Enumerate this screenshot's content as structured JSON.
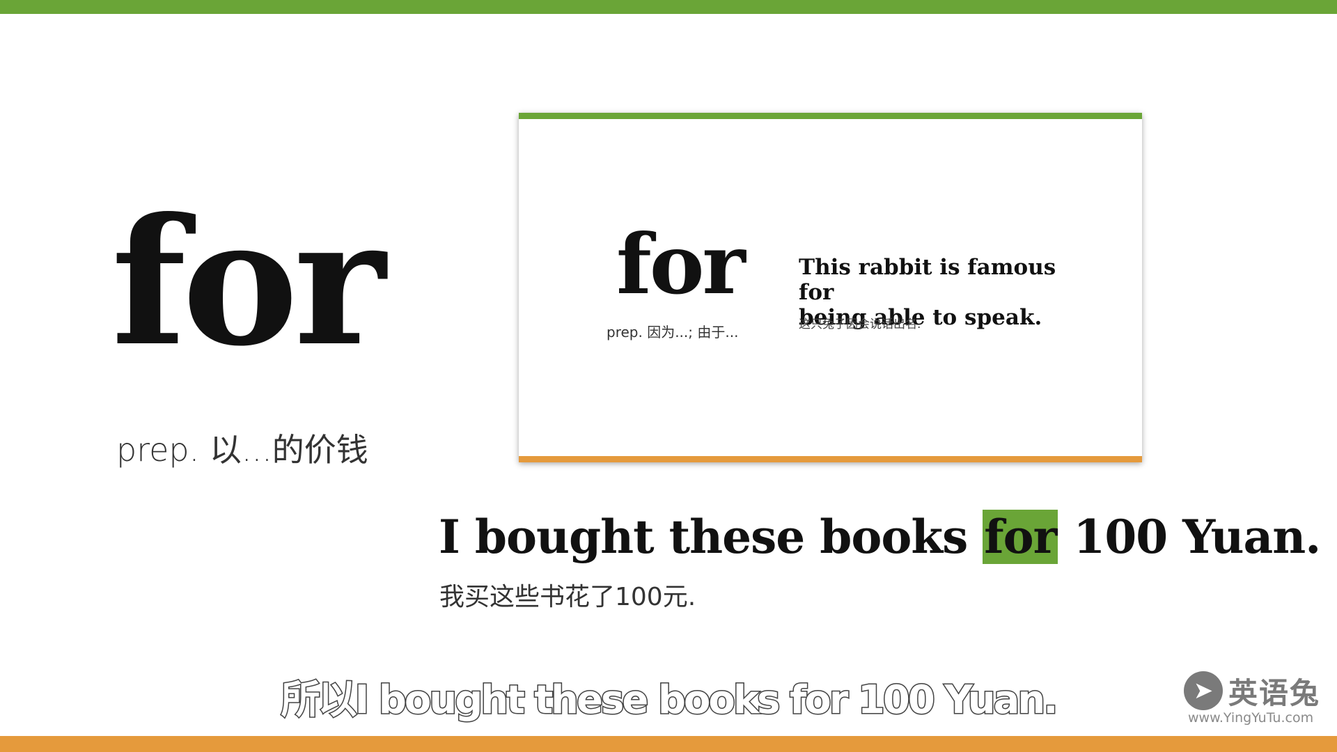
{
  "colors": {
    "accent_green": "#6aa537",
    "accent_orange": "#e59a3c",
    "text_dark": "#111111"
  },
  "main": {
    "word": "for",
    "part_of_speech": "prep. 以...的价钱"
  },
  "card": {
    "word": "for",
    "part_of_speech": "prep. 因为...; 由于...",
    "example_en_line1": "This rabbit is famous for",
    "example_en_line2": "being able to speak.",
    "example_cn": "这只兔子因会说话出名."
  },
  "example": {
    "before": "I bought these books ",
    "highlight": "for",
    "after": " 100 Yuan.",
    "translation": "我买这些书花了100元."
  },
  "subtitle": {
    "text": "所以I bought these books for 100 Yuan."
  },
  "logo": {
    "icon": "rabbit-icon",
    "name": "英语兔",
    "url": "www.YingYuTu.com"
  }
}
